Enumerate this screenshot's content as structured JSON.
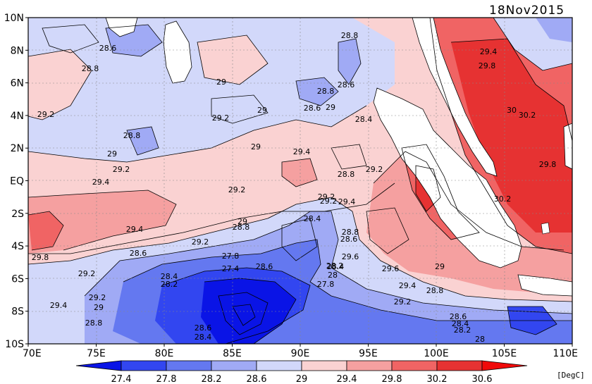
{
  "date": "18Nov2015",
  "unit": "[DegC]",
  "lat_labels": [
    "10N",
    "8N",
    "6N",
    "4N",
    "2N",
    "EQ",
    "2S",
    "4S",
    "6S",
    "8S",
    "10S"
  ],
  "lon_labels": [
    "70E",
    "75E",
    "80E",
    "85E",
    "90E",
    "95E",
    "100E",
    "105E",
    "110E"
  ],
  "colorbar": {
    "levels": [
      "27.4",
      "27.8",
      "28.2",
      "28.6",
      "29",
      "29.4",
      "29.8",
      "30.2",
      "30.6"
    ],
    "colors": [
      "#0a14e6",
      "#3246f0",
      "#6478f0",
      "#a0aaf5",
      "#d2d8fa",
      "#fad2d2",
      "#f5a0a0",
      "#f06464",
      "#e63232",
      "#f00a0a"
    ]
  },
  "contour_labels": [
    {
      "text": "28.8"
    },
    {
      "text": "28.6"
    },
    {
      "text": "28.8"
    },
    {
      "text": "29"
    },
    {
      "text": "29.4"
    },
    {
      "text": "29.8"
    },
    {
      "text": "28.8"
    },
    {
      "text": "28.6"
    },
    {
      "text": "29"
    },
    {
      "text": "28.6"
    },
    {
      "text": "29.2"
    },
    {
      "text": "29"
    },
    {
      "text": "28.4"
    },
    {
      "text": "29.2"
    },
    {
      "text": "30"
    },
    {
      "text": "30.2"
    },
    {
      "text": "28.8"
    },
    {
      "text": "29"
    },
    {
      "text": "29"
    },
    {
      "text": "29.4"
    },
    {
      "text": "29.2"
    },
    {
      "text": "29.2"
    },
    {
      "text": "28.8"
    },
    {
      "text": "29.2"
    },
    {
      "text": "29.4"
    },
    {
      "text": "29.8"
    },
    {
      "text": "29.2"
    },
    {
      "text": "29.2"
    },
    {
      "text": "29.4"
    },
    {
      "text": "30.2"
    },
    {
      "text": "29.4"
    },
    {
      "text": "29"
    },
    {
      "text": "28.4"
    },
    {
      "text": "28.8"
    },
    {
      "text": "28.8"
    },
    {
      "text": "29.2"
    },
    {
      "text": "28.6"
    },
    {
      "text": "29.8"
    },
    {
      "text": "28.6"
    },
    {
      "text": "27.8"
    },
    {
      "text": "27.4"
    },
    {
      "text": "28.6"
    },
    {
      "text": "28.2"
    },
    {
      "text": "28.4"
    },
    {
      "text": "29.6"
    },
    {
      "text": "29"
    },
    {
      "text": "29.2"
    },
    {
      "text": "28.4"
    },
    {
      "text": "28.2"
    },
    {
      "text": "28"
    },
    {
      "text": "27.8"
    },
    {
      "text": "29.6"
    },
    {
      "text": "29.4"
    },
    {
      "text": "28.8"
    },
    {
      "text": "29.2"
    },
    {
      "text": "29.2"
    },
    {
      "text": "29"
    },
    {
      "text": "29.4"
    },
    {
      "text": "28.6"
    },
    {
      "text": "28.4"
    },
    {
      "text": "28.2"
    },
    {
      "text": "28.8"
    },
    {
      "text": "28.6"
    },
    {
      "text": "28.4"
    },
    {
      "text": "28"
    }
  ]
}
